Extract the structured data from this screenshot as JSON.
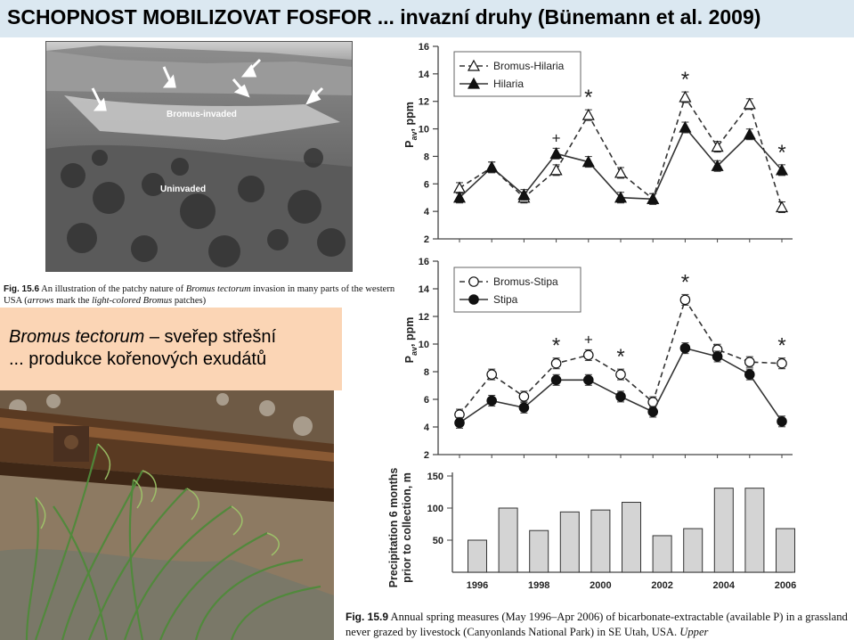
{
  "slide": {
    "title": "SCHOPNOST MOBILIZOVAT FOSFOR ... invazní druhy (Bünemann et al. 2009)",
    "bromus_name": "Bromus tectorum",
    "bromus_rest": " – sveřep střešní",
    "bromus_line2": "... produkce kořenových exudátů"
  },
  "photo": {
    "label_invaded": "Bromus-invaded",
    "label_uninvaded": "Uninvaded"
  },
  "caption_156": {
    "fig": "Fig. 15.6",
    "t1": "  An illustration of the patchy nature of ",
    "i1": "Bromus tectorum",
    "t2": " invasion in many parts of the western USA (",
    "i2": "arrows",
    "t3": " mark the ",
    "i3": "light-colored Bromus",
    "t4": " patches)"
  },
  "caption_159": {
    "fig": "Fig. 15.9",
    "t1": "  Annual spring measures (May 1996–Apr 2006) of bicarbonate-extractable (available P) in a grassland never grazed by livestock (Canyonlands National Park) in SE Utah, USA. ",
    "i1": "Upper"
  },
  "chart_data": [
    {
      "type": "line",
      "x": [
        1996,
        1997,
        1998,
        1999,
        2000,
        2001,
        2002,
        2003,
        2004,
        2005,
        2006
      ],
      "ylabel_main": "P",
      "ylabel_sub": "av",
      "ylabel_unit": ", ppm",
      "ylim": [
        2,
        16
      ],
      "yticks": [
        2,
        4,
        6,
        8,
        10,
        12,
        14,
        16
      ],
      "legend_position": "top-left",
      "series": [
        {
          "name": "Bromus-Hilaria",
          "marker": "open-triangle",
          "dash": "dashed",
          "values": [
            5.7,
            7.2,
            5.0,
            7.0,
            11.0,
            6.8,
            4.9,
            12.3,
            8.7,
            11.8,
            4.3
          ]
        },
        {
          "name": "Hilaria",
          "marker": "filled-triangle",
          "dash": "solid",
          "values": [
            5.0,
            7.2,
            5.2,
            8.2,
            7.6,
            5.0,
            4.9,
            10.1,
            7.3,
            9.6,
            7.0
          ]
        }
      ],
      "annotations": [
        {
          "x": 1999,
          "symbol": "+"
        },
        {
          "x": 2000,
          "symbol": "*"
        },
        {
          "x": 2003,
          "symbol": "*"
        },
        {
          "x": 2006,
          "symbol": "*"
        }
      ]
    },
    {
      "type": "line",
      "x": [
        1996,
        1997,
        1998,
        1999,
        2000,
        2001,
        2002,
        2003,
        2004,
        2005,
        2006
      ],
      "ylabel_main": "P",
      "ylabel_sub": "av",
      "ylabel_unit": ", ppm",
      "ylim": [
        2,
        16
      ],
      "yticks": [
        2,
        4,
        6,
        8,
        10,
        12,
        14,
        16
      ],
      "legend_position": "top-left",
      "series": [
        {
          "name": "Bromus-Stipa",
          "marker": "open-circle",
          "dash": "dashed",
          "values": [
            4.9,
            7.8,
            6.2,
            8.6,
            9.2,
            7.8,
            5.8,
            13.2,
            9.6,
            8.7,
            8.6
          ]
        },
        {
          "name": "Stipa",
          "marker": "filled-circle",
          "dash": "solid",
          "values": [
            4.3,
            5.9,
            5.4,
            7.4,
            7.4,
            6.2,
            5.1,
            9.7,
            9.1,
            7.8,
            4.4
          ]
        }
      ],
      "annotations": [
        {
          "x": 1999,
          "symbol": "*"
        },
        {
          "x": 2000,
          "symbol": "+"
        },
        {
          "x": 2001,
          "symbol": "*"
        },
        {
          "x": 2003,
          "symbol": "*"
        },
        {
          "x": 2006,
          "symbol": "*"
        }
      ]
    },
    {
      "type": "bar",
      "categories": [
        1996,
        1997,
        1998,
        1999,
        2000,
        2001,
        2002,
        2003,
        2004,
        2005,
        2006
      ],
      "xticks": [
        "1996",
        "1998",
        "2000",
        "2002",
        "2004",
        "2006"
      ],
      "values": [
        50,
        100,
        65,
        94,
        97,
        109,
        57,
        68,
        131,
        131,
        68
      ],
      "ylabel_line1": "Precipitation 6 months",
      "ylabel_line2": "prior to collection, m",
      "ylim": [
        0,
        150
      ],
      "yticks": [
        50,
        100,
        150
      ]
    }
  ],
  "colors": {
    "title_bar": "#dbe8f1",
    "peach_box": "#fbd5b5",
    "bar_fill": "#d4d4d4"
  }
}
